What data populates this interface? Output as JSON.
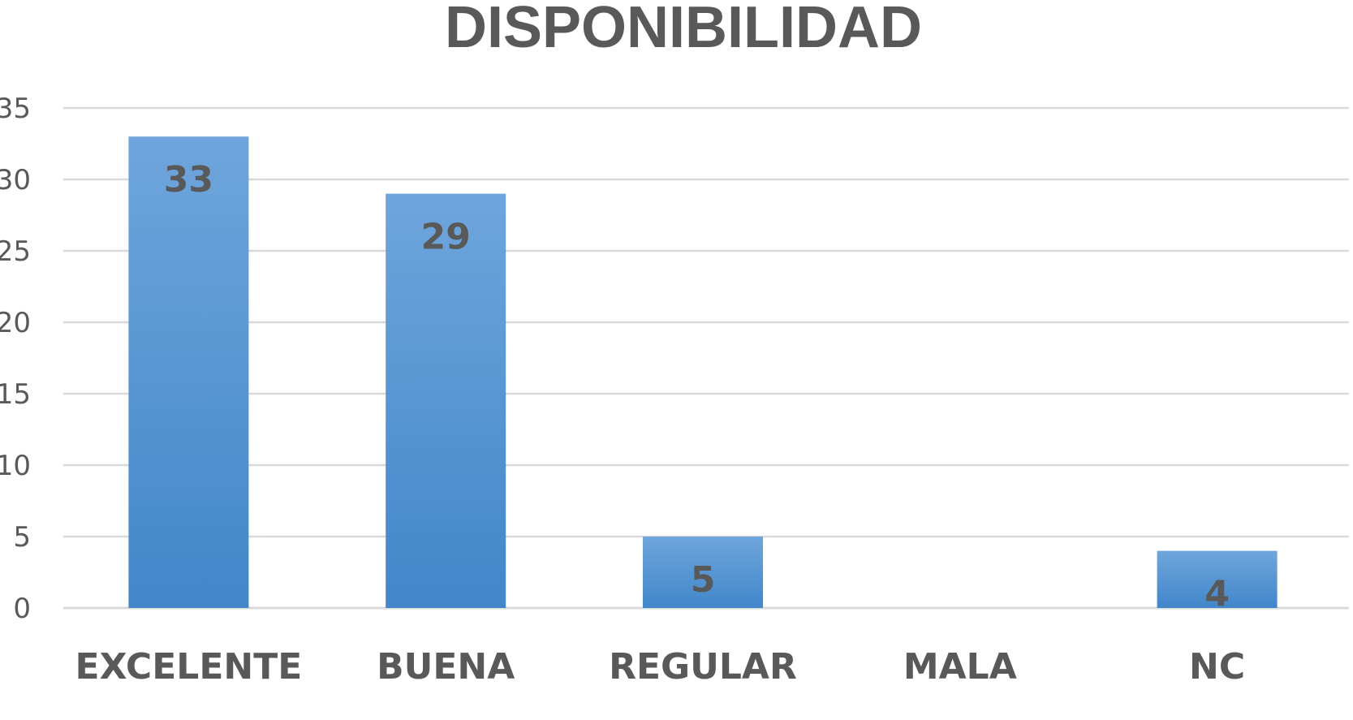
{
  "chart_data": {
    "type": "bar",
    "title": "DISPONIBILIDAD",
    "xlabel": "",
    "ylabel": "",
    "categories": [
      "EXCELENTE",
      "BUENA",
      "REGULAR",
      "MALA",
      "NC"
    ],
    "values": [
      33,
      29,
      5,
      0,
      4
    ],
    "data_labels": [
      "33",
      "29",
      "5",
      "",
      "4"
    ],
    "ylim": [
      0,
      35
    ],
    "yticks": [
      0,
      5,
      10,
      15,
      20,
      25,
      30,
      35
    ],
    "grid": true,
    "legend": "none",
    "colors": {
      "bar_top": "#6fa5dc",
      "bar_bottom": "#4187ca",
      "text": "#595959",
      "tick_text": "#595959",
      "grid": "#d9d9d9"
    }
  }
}
